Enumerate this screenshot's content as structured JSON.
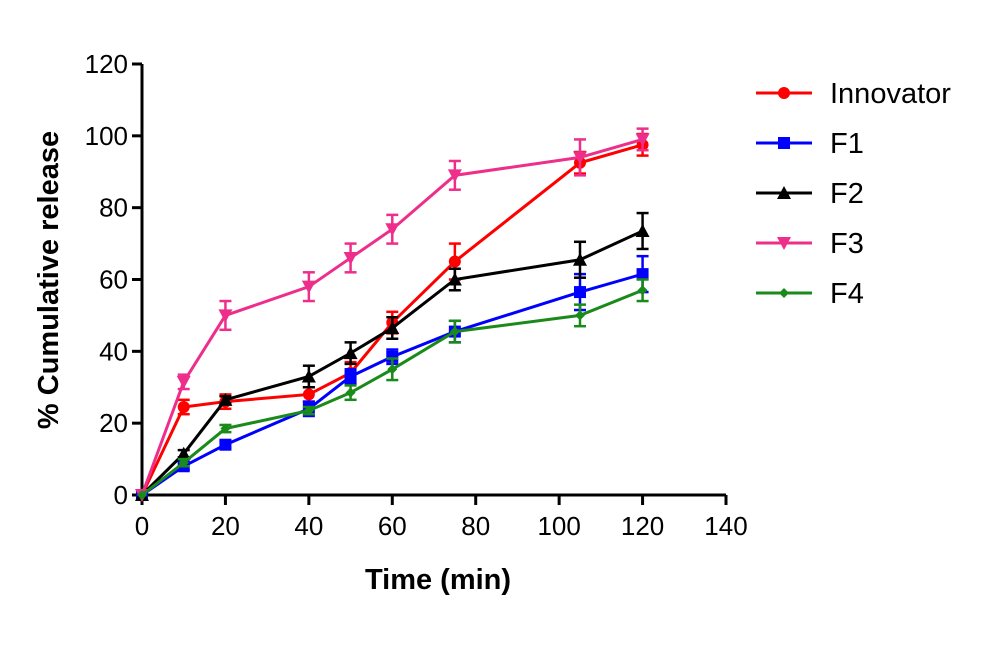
{
  "chart_data": {
    "type": "line",
    "xlabel": "Time (min)",
    "ylabel": "% Cumulative release",
    "xlim": [
      0,
      140
    ],
    "ylim": [
      0,
      120
    ],
    "x_ticks": [
      0,
      20,
      40,
      60,
      80,
      100,
      120,
      140
    ],
    "y_ticks": [
      0,
      20,
      40,
      60,
      80,
      100,
      120
    ],
    "grid": false,
    "legend_position": "right",
    "x": [
      0,
      10,
      20,
      40,
      50,
      60,
      75,
      105,
      120
    ],
    "series": [
      {
        "name": "Innovator",
        "color": "#ff0000",
        "marker": "circle",
        "values": [
          0,
          24.5,
          26,
          28,
          34,
          48,
          65,
          92.5,
          97.5
        ],
        "errors": [
          0,
          2,
          2,
          2,
          3,
          3,
          5,
          3,
          3
        ]
      },
      {
        "name": "F1",
        "color": "#0000ff",
        "marker": "square",
        "values": [
          0,
          8,
          14,
          24,
          33,
          38.5,
          45.5,
          56.5,
          61.5
        ],
        "errors": [
          0,
          1,
          1,
          2,
          2,
          2,
          3,
          5,
          5
        ]
      },
      {
        "name": "F2",
        "color": "#000000",
        "marker": "triangle-up",
        "values": [
          0,
          11.5,
          26.5,
          33,
          39.5,
          46.5,
          60,
          65.5,
          73.5
        ],
        "errors": [
          0,
          1,
          1,
          3,
          3,
          3,
          3,
          5,
          5
        ]
      },
      {
        "name": "F3",
        "color": "#ee2e8b",
        "marker": "triangle-down",
        "values": [
          0,
          31.5,
          50,
          58,
          66,
          74,
          89,
          94,
          99
        ],
        "errors": [
          0,
          2,
          4,
          4,
          4,
          4,
          4,
          5,
          3
        ]
      },
      {
        "name": "F4",
        "color": "#1a8a1a",
        "marker": "diamond",
        "values": [
          0,
          9,
          18.5,
          23.5,
          28.5,
          35,
          45.5,
          50,
          57
        ],
        "errors": [
          0,
          1,
          1,
          1,
          2,
          3,
          3,
          3,
          3
        ]
      }
    ]
  }
}
